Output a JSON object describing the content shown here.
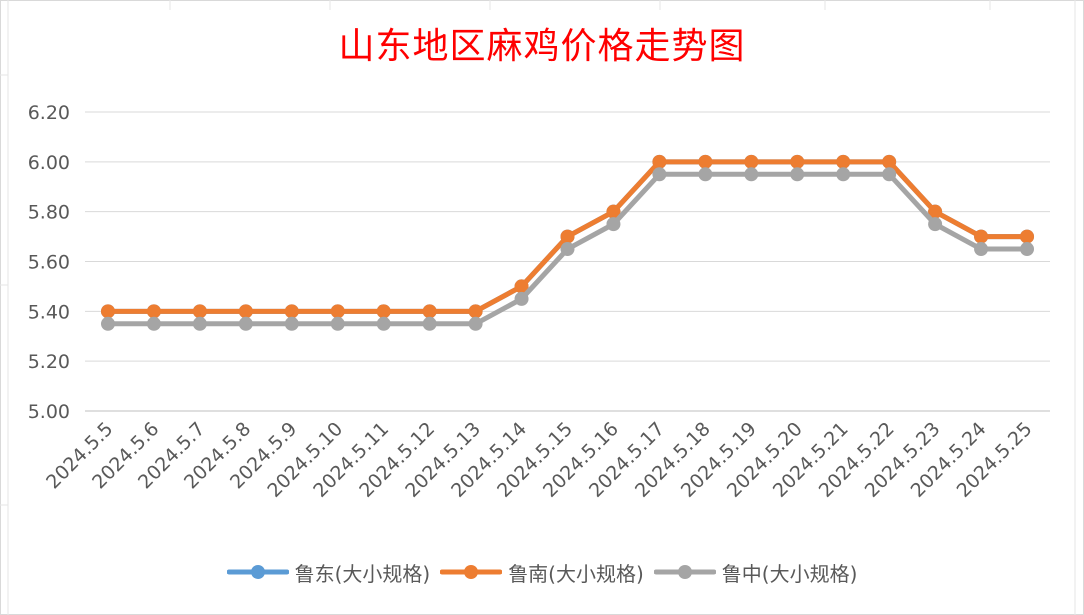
{
  "chart_data": {
    "type": "line",
    "title": "山东地区麻鸡价格走势图",
    "xlabel": "",
    "ylabel": "",
    "categories": [
      "2024.5.5",
      "2024.5.6",
      "2024.5.7",
      "2024.5.8",
      "2024.5.9",
      "2024.5.10",
      "2024.5.11",
      "2024.5.12",
      "2024.5.13",
      "2024.5.14",
      "2024.5.15",
      "2024.5.16",
      "2024.5.17",
      "2024.5.18",
      "2024.5.19",
      "2024.5.20",
      "2024.5.21",
      "2024.5.22",
      "2024.5.23",
      "2024.5.24",
      "2024.5.25"
    ],
    "yticks": [
      "5.00",
      "5.20",
      "5.40",
      "5.60",
      "5.80",
      "6.00",
      "6.20"
    ],
    "ylim": [
      5.0,
      6.2
    ],
    "grid": true,
    "legend_position": "bottom",
    "series": [
      {
        "name": "鲁东(大小规格)",
        "color": "#5b9bd5",
        "values": [
          5.4,
          5.4,
          5.4,
          5.4,
          5.4,
          5.4,
          5.4,
          5.4,
          5.4,
          5.5,
          5.7,
          5.8,
          6.0,
          6.0,
          6.0,
          6.0,
          6.0,
          6.0,
          5.8,
          5.7,
          5.7
        ]
      },
      {
        "name": "鲁南(大小规格)",
        "color": "#ed7d31",
        "values": [
          5.4,
          5.4,
          5.4,
          5.4,
          5.4,
          5.4,
          5.4,
          5.4,
          5.4,
          5.5,
          5.7,
          5.8,
          6.0,
          6.0,
          6.0,
          6.0,
          6.0,
          6.0,
          5.8,
          5.7,
          5.7
        ]
      },
      {
        "name": "鲁中(大小规格)",
        "color": "#a5a5a5",
        "values": [
          5.35,
          5.35,
          5.35,
          5.35,
          5.35,
          5.35,
          5.35,
          5.35,
          5.35,
          5.45,
          5.65,
          5.75,
          5.95,
          5.95,
          5.95,
          5.95,
          5.95,
          5.95,
          5.75,
          5.65,
          5.65
        ]
      }
    ],
    "draw_order": [
      0,
      1,
      2
    ]
  }
}
